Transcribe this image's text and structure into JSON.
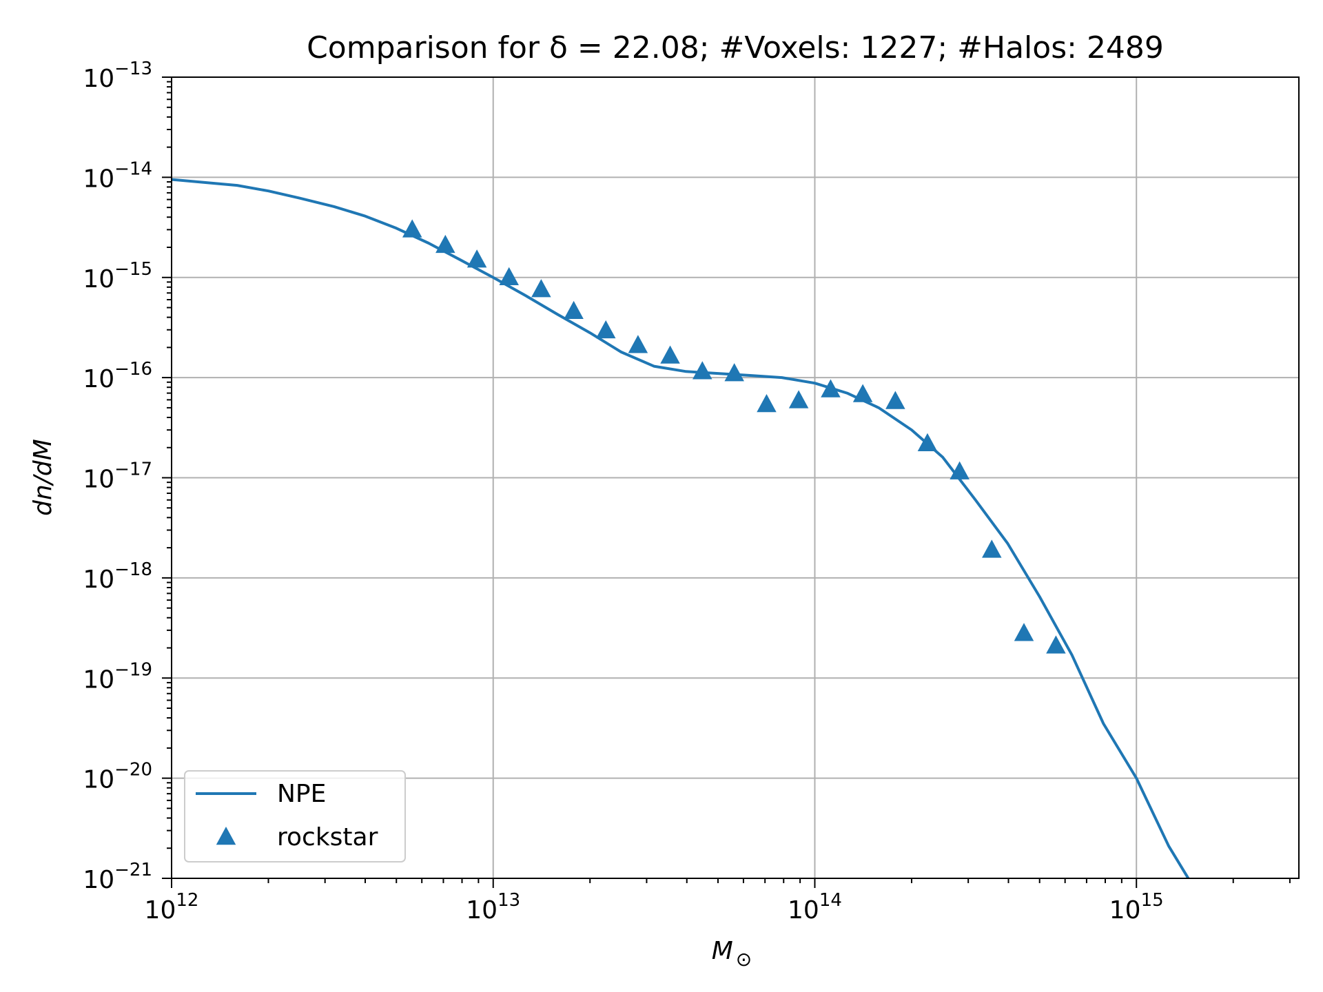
{
  "chart_data": {
    "type": "line",
    "title": "Comparison for δ = 22.08; #Voxels: 1227; #Halos: 2489",
    "xlabel": "M",
    "xlabel_subscript": "⊙",
    "ylabel": "dn/dM",
    "x_scale": "log",
    "y_scale": "log",
    "xlim": [
      1000000000000.0,
      3200000000000000.0
    ],
    "ylim": [
      1e-21,
      1e-13
    ],
    "x_ticks": [
      {
        "value": 1000000000000.0,
        "base": "10",
        "exp": "12"
      },
      {
        "value": 10000000000000.0,
        "base": "10",
        "exp": "13"
      },
      {
        "value": 100000000000000.0,
        "base": "10",
        "exp": "14"
      },
      {
        "value": 1000000000000000.0,
        "base": "10",
        "exp": "15"
      }
    ],
    "y_ticks": [
      {
        "value": 1e-13,
        "base": "10",
        "exp": "−13"
      },
      {
        "value": 1e-14,
        "base": "10",
        "exp": "−14"
      },
      {
        "value": 1e-15,
        "base": "10",
        "exp": "−15"
      },
      {
        "value": 1e-16,
        "base": "10",
        "exp": "−16"
      },
      {
        "value": 1e-17,
        "base": "10",
        "exp": "−17"
      },
      {
        "value": 1e-18,
        "base": "10",
        "exp": "−18"
      },
      {
        "value": 1e-19,
        "base": "10",
        "exp": "−19"
      },
      {
        "value": 1e-20,
        "base": "10",
        "exp": "−20"
      },
      {
        "value": 1e-21,
        "base": "10",
        "exp": "−21"
      }
    ],
    "grid": true,
    "legend_position": "bottom-left",
    "color": "#1f77b4",
    "series": [
      {
        "name": "NPE",
        "kind": "line",
        "x": [
          1000000000000.0,
          1600000000000.0,
          2000000000000.0,
          2500000000000.0,
          3200000000000.0,
          4000000000000.0,
          5000000000000.0,
          6300000000000.0,
          7900000000000.0,
          10000000000000.0,
          12600000000000.0,
          15800000000000.0,
          20000000000000.0,
          25000000000000.0,
          31600000000000.0,
          39800000000000.0,
          50000000000000.0,
          63000000000000.0,
          79000000000000.0,
          100000000000000.0,
          126000000000000.0,
          158000000000000.0,
          200000000000000.0,
          250000000000000.0,
          316000000000000.0,
          398000000000000.0,
          500000000000000.0,
          630000000000000.0,
          790000000000000.0,
          1000000000000000.0,
          1260000000000000.0,
          1450000000000000.0
        ],
        "y": [
          9.5e-15,
          8.3e-15,
          7.3e-15,
          6.2e-15,
          5.1e-15,
          4.1e-15,
          3.1e-15,
          2.2e-15,
          1.5e-15,
          1e-15,
          6.6e-16,
          4.3e-16,
          2.8e-16,
          1.8e-16,
          1.3e-16,
          1.15e-16,
          1.1e-16,
          1.05e-16,
          1e-16,
          8.8e-17,
          7e-17,
          5e-17,
          3e-17,
          1.6e-17,
          6e-18,
          2.2e-18,
          6.5e-19,
          1.7e-19,
          3.5e-20,
          1e-20,
          2.1e-21,
          1e-21
        ]
      },
      {
        "name": "rockstar",
        "kind": "scatter",
        "marker": "triangle",
        "x": [
          5600000000000.0,
          7100000000000.0,
          8900000000000.0,
          11200000000000.0,
          14100000000000.0,
          17800000000000.0,
          22400000000000.0,
          28200000000000.0,
          35500000000000.0,
          44700000000000.0,
          56200000000000.0,
          70800000000000.0,
          89100000000000.0,
          112000000000000.0,
          141000000000000.0,
          178000000000000.0,
          224000000000000.0,
          282000000000000.0,
          355000000000000.0,
          447000000000000.0,
          562000000000000.0
        ],
        "y": [
          3e-15,
          2.1e-15,
          1.5e-15,
          1e-15,
          7.6e-16,
          4.6e-16,
          2.95e-16,
          2.1e-16,
          1.65e-16,
          1.15e-16,
          1.1e-16,
          5.4e-17,
          5.9e-17,
          7.6e-17,
          6.8e-17,
          5.8e-17,
          2.2e-17,
          1.15e-17,
          1.9e-18,
          2.8e-19,
          2.1e-19
        ]
      }
    ]
  }
}
